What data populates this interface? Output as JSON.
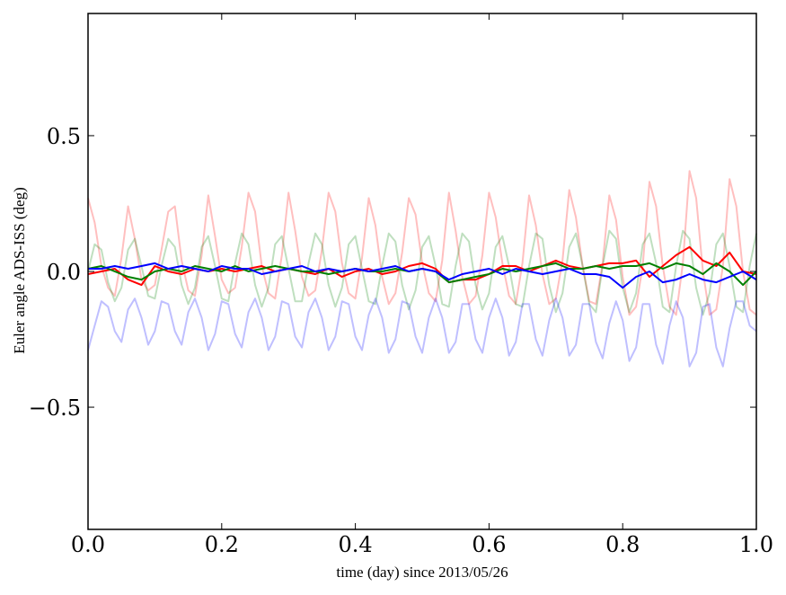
{
  "chart_data": {
    "type": "line",
    "title": "",
    "xlabel": "time (day) since 2013/05/26",
    "ylabel": "Euler angle ADS-ISS (deg)",
    "xlim": [
      0.0,
      1.0
    ],
    "ylim": [
      -0.95,
      0.95
    ],
    "x_ticks": [
      0.0,
      0.2,
      0.4,
      0.6,
      0.8,
      1.0
    ],
    "x_tick_labels": [
      "0.0",
      "0.2",
      "0.4",
      "0.6",
      "0.8",
      "1.0"
    ],
    "y_ticks": [
      -0.5,
      0.0,
      0.5
    ],
    "y_tick_labels": [
      "−0.5",
      "0.0",
      "0.5"
    ],
    "grid": false,
    "legend": "none",
    "series": [
      {
        "color": "#ff0000",
        "opacity": 0.25,
        "x": [
          0.0,
          0.01,
          0.02,
          0.03,
          0.04,
          0.05,
          0.06,
          0.07,
          0.08,
          0.09,
          0.1,
          0.11,
          0.12,
          0.13,
          0.14,
          0.15,
          0.16,
          0.17,
          0.18,
          0.19,
          0.2,
          0.21,
          0.22,
          0.23,
          0.24,
          0.25,
          0.26,
          0.27,
          0.28,
          0.29,
          0.3,
          0.31,
          0.32,
          0.33,
          0.34,
          0.35,
          0.36,
          0.37,
          0.38,
          0.39,
          0.4,
          0.41,
          0.42,
          0.43,
          0.44,
          0.45,
          0.46,
          0.47,
          0.48,
          0.49,
          0.5,
          0.51,
          0.52,
          0.53,
          0.54,
          0.55,
          0.56,
          0.57,
          0.58,
          0.59,
          0.6,
          0.61,
          0.62,
          0.63,
          0.64,
          0.65,
          0.66,
          0.67,
          0.68,
          0.69,
          0.7,
          0.71,
          0.72,
          0.73,
          0.74,
          0.75,
          0.76,
          0.77,
          0.78,
          0.79,
          0.8,
          0.81,
          0.82,
          0.83,
          0.84,
          0.85,
          0.86,
          0.87,
          0.88,
          0.89,
          0.9,
          0.91,
          0.92,
          0.93,
          0.94,
          0.95,
          0.96,
          0.97,
          0.98,
          0.99,
          1.0
        ],
        "y": [
          0.27,
          0.18,
          0.02,
          -0.06,
          -0.09,
          0.05,
          0.24,
          0.12,
          -0.03,
          -0.07,
          -0.05,
          0.08,
          0.22,
          0.24,
          0.04,
          -0.07,
          -0.09,
          0.06,
          0.28,
          0.13,
          -0.03,
          -0.08,
          -0.06,
          0.09,
          0.29,
          0.22,
          0.02,
          -0.08,
          -0.1,
          0.06,
          0.29,
          0.15,
          -0.02,
          -0.09,
          -0.07,
          0.08,
          0.29,
          0.22,
          0.03,
          -0.08,
          -0.1,
          0.05,
          0.27,
          0.17,
          -0.02,
          -0.12,
          -0.08,
          0.07,
          0.27,
          0.21,
          0.03,
          -0.08,
          -0.11,
          0.04,
          0.29,
          0.15,
          -0.02,
          -0.12,
          -0.09,
          0.06,
          0.29,
          0.2,
          0.03,
          -0.09,
          -0.12,
          0.03,
          0.28,
          0.17,
          -0.01,
          -0.12,
          -0.1,
          0.04,
          0.3,
          0.2,
          0.02,
          -0.11,
          -0.12,
          0.03,
          0.28,
          0.19,
          -0.02,
          -0.16,
          -0.13,
          0.02,
          0.33,
          0.24,
          0.02,
          -0.13,
          -0.16,
          0.03,
          0.37,
          0.27,
          0.0,
          -0.16,
          -0.14,
          0.02,
          0.34,
          0.24,
          0.0,
          -0.14,
          -0.16
        ]
      },
      {
        "color": "#008000",
        "opacity": 0.25,
        "x": [
          0.0,
          0.01,
          0.02,
          0.03,
          0.04,
          0.05,
          0.06,
          0.07,
          0.08,
          0.09,
          0.1,
          0.11,
          0.12,
          0.13,
          0.14,
          0.15,
          0.16,
          0.17,
          0.18,
          0.19,
          0.2,
          0.21,
          0.22,
          0.23,
          0.24,
          0.25,
          0.26,
          0.27,
          0.28,
          0.29,
          0.3,
          0.31,
          0.32,
          0.33,
          0.34,
          0.35,
          0.36,
          0.37,
          0.38,
          0.39,
          0.4,
          0.41,
          0.42,
          0.43,
          0.44,
          0.45,
          0.46,
          0.47,
          0.48,
          0.49,
          0.5,
          0.51,
          0.52,
          0.53,
          0.54,
          0.55,
          0.56,
          0.57,
          0.58,
          0.59,
          0.6,
          0.61,
          0.62,
          0.63,
          0.64,
          0.65,
          0.66,
          0.67,
          0.68,
          0.69,
          0.7,
          0.71,
          0.72,
          0.73,
          0.74,
          0.75,
          0.76,
          0.77,
          0.78,
          0.79,
          0.8,
          0.81,
          0.82,
          0.83,
          0.84,
          0.85,
          0.86,
          0.87,
          0.88,
          0.89,
          0.9,
          0.91,
          0.92,
          0.93,
          0.94,
          0.95,
          0.96,
          0.97,
          0.98,
          0.99,
          1.0
        ],
        "y": [
          0.0,
          0.1,
          0.08,
          -0.04,
          -0.11,
          -0.06,
          0.08,
          0.12,
          0.02,
          -0.09,
          -0.1,
          0.02,
          0.12,
          0.09,
          -0.05,
          -0.12,
          -0.06,
          0.09,
          0.13,
          0.02,
          -0.1,
          -0.11,
          0.03,
          0.14,
          0.1,
          -0.05,
          -0.13,
          -0.06,
          0.1,
          0.13,
          0.01,
          -0.11,
          -0.11,
          0.03,
          0.14,
          0.1,
          -0.05,
          -0.13,
          -0.06,
          0.1,
          0.13,
          0.01,
          -0.11,
          -0.12,
          0.02,
          0.14,
          0.11,
          -0.05,
          -0.14,
          -0.07,
          0.09,
          0.13,
          0.02,
          -0.12,
          -0.13,
          0.02,
          0.14,
          0.11,
          -0.05,
          -0.14,
          -0.08,
          0.09,
          0.13,
          0.02,
          -0.12,
          -0.13,
          0.02,
          0.14,
          0.12,
          -0.05,
          -0.15,
          -0.08,
          0.09,
          0.14,
          0.02,
          -0.12,
          -0.15,
          0.02,
          0.15,
          0.12,
          -0.06,
          -0.15,
          -0.08,
          0.1,
          0.14,
          0.03,
          -0.13,
          -0.15,
          0.02,
          0.15,
          0.12,
          -0.06,
          -0.16,
          -0.08,
          0.1,
          0.14,
          0.02,
          -0.13,
          -0.15,
          0.02,
          0.14
        ]
      },
      {
        "color": "#0000ff",
        "opacity": 0.25,
        "x": [
          0.0,
          0.01,
          0.02,
          0.03,
          0.04,
          0.05,
          0.06,
          0.07,
          0.08,
          0.09,
          0.1,
          0.11,
          0.12,
          0.13,
          0.14,
          0.15,
          0.16,
          0.17,
          0.18,
          0.19,
          0.2,
          0.21,
          0.22,
          0.23,
          0.24,
          0.25,
          0.26,
          0.27,
          0.28,
          0.29,
          0.3,
          0.31,
          0.32,
          0.33,
          0.34,
          0.35,
          0.36,
          0.37,
          0.38,
          0.39,
          0.4,
          0.41,
          0.42,
          0.43,
          0.44,
          0.45,
          0.46,
          0.47,
          0.48,
          0.49,
          0.5,
          0.51,
          0.52,
          0.53,
          0.54,
          0.55,
          0.56,
          0.57,
          0.58,
          0.59,
          0.6,
          0.61,
          0.62,
          0.63,
          0.64,
          0.65,
          0.66,
          0.67,
          0.68,
          0.69,
          0.7,
          0.71,
          0.72,
          0.73,
          0.74,
          0.75,
          0.76,
          0.77,
          0.78,
          0.79,
          0.8,
          0.81,
          0.82,
          0.83,
          0.84,
          0.85,
          0.86,
          0.87,
          0.88,
          0.89,
          0.9,
          0.91,
          0.92,
          0.93,
          0.94,
          0.95,
          0.96,
          0.97,
          0.98,
          0.99,
          1.0
        ],
        "y": [
          -0.29,
          -0.2,
          -0.11,
          -0.13,
          -0.22,
          -0.26,
          -0.14,
          -0.1,
          -0.17,
          -0.27,
          -0.22,
          -0.11,
          -0.12,
          -0.22,
          -0.27,
          -0.15,
          -0.1,
          -0.17,
          -0.29,
          -0.23,
          -0.11,
          -0.12,
          -0.23,
          -0.28,
          -0.15,
          -0.1,
          -0.17,
          -0.29,
          -0.24,
          -0.11,
          -0.12,
          -0.24,
          -0.28,
          -0.15,
          -0.1,
          -0.17,
          -0.29,
          -0.24,
          -0.11,
          -0.12,
          -0.24,
          -0.29,
          -0.16,
          -0.1,
          -0.17,
          -0.3,
          -0.25,
          -0.11,
          -0.12,
          -0.24,
          -0.3,
          -0.17,
          -0.1,
          -0.17,
          -0.3,
          -0.26,
          -0.12,
          -0.12,
          -0.25,
          -0.3,
          -0.17,
          -0.1,
          -0.17,
          -0.31,
          -0.26,
          -0.12,
          -0.12,
          -0.25,
          -0.31,
          -0.18,
          -0.1,
          -0.17,
          -0.31,
          -0.27,
          -0.12,
          -0.12,
          -0.26,
          -0.32,
          -0.19,
          -0.11,
          -0.18,
          -0.33,
          -0.28,
          -0.12,
          -0.12,
          -0.27,
          -0.34,
          -0.2,
          -0.11,
          -0.17,
          -0.35,
          -0.3,
          -0.13,
          -0.12,
          -0.28,
          -0.35,
          -0.21,
          -0.11,
          -0.11,
          -0.2,
          -0.22
        ]
      },
      {
        "color": "#ff0000",
        "opacity": 1,
        "x": [
          0.0,
          0.02,
          0.04,
          0.06,
          0.08,
          0.1,
          0.12,
          0.14,
          0.16,
          0.18,
          0.2,
          0.22,
          0.24,
          0.26,
          0.28,
          0.3,
          0.32,
          0.34,
          0.36,
          0.38,
          0.4,
          0.42,
          0.44,
          0.46,
          0.48,
          0.5,
          0.52,
          0.54,
          0.56,
          0.58,
          0.6,
          0.62,
          0.64,
          0.66,
          0.68,
          0.7,
          0.72,
          0.74,
          0.76,
          0.78,
          0.8,
          0.82,
          0.84,
          0.86,
          0.88,
          0.9,
          0.92,
          0.94,
          0.96,
          0.98,
          1.0
        ],
        "y": [
          -0.01,
          0.0,
          0.01,
          -0.03,
          -0.05,
          0.02,
          0.0,
          -0.01,
          0.01,
          0.0,
          0.01,
          0.0,
          0.01,
          0.02,
          0.0,
          0.01,
          0.0,
          -0.01,
          0.01,
          -0.02,
          0.0,
          0.01,
          -0.01,
          0.0,
          0.02,
          0.03,
          0.01,
          -0.04,
          -0.03,
          -0.03,
          -0.01,
          0.02,
          0.02,
          0.0,
          0.02,
          0.04,
          0.02,
          0.01,
          0.02,
          0.03,
          0.03,
          0.04,
          -0.02,
          0.02,
          0.06,
          0.09,
          0.04,
          0.02,
          0.07,
          0.0,
          -0.01
        ]
      },
      {
        "color": "#008000",
        "opacity": 1,
        "x": [
          0.0,
          0.02,
          0.04,
          0.06,
          0.08,
          0.1,
          0.12,
          0.14,
          0.16,
          0.18,
          0.2,
          0.22,
          0.24,
          0.26,
          0.28,
          0.3,
          0.32,
          0.34,
          0.36,
          0.38,
          0.4,
          0.42,
          0.44,
          0.46,
          0.48,
          0.5,
          0.52,
          0.54,
          0.56,
          0.58,
          0.6,
          0.62,
          0.64,
          0.66,
          0.68,
          0.7,
          0.72,
          0.74,
          0.76,
          0.78,
          0.8,
          0.82,
          0.84,
          0.86,
          0.88,
          0.9,
          0.92,
          0.94,
          0.96,
          0.98,
          1.0
        ],
        "y": [
          0.01,
          0.02,
          0.0,
          -0.02,
          -0.03,
          0.0,
          0.01,
          0.0,
          0.02,
          0.01,
          0.0,
          0.02,
          0.0,
          0.01,
          0.02,
          0.01,
          0.0,
          0.0,
          -0.01,
          0.0,
          0.01,
          0.0,
          0.0,
          0.01,
          0.0,
          0.01,
          0.0,
          -0.04,
          -0.03,
          -0.02,
          -0.01,
          0.01,
          0.0,
          0.01,
          0.02,
          0.03,
          0.01,
          0.01,
          0.02,
          0.01,
          0.02,
          0.02,
          0.03,
          0.01,
          0.03,
          0.02,
          -0.01,
          0.03,
          0.0,
          -0.05,
          0.0
        ]
      },
      {
        "color": "#0000ff",
        "opacity": 1,
        "x": [
          0.0,
          0.02,
          0.04,
          0.06,
          0.08,
          0.1,
          0.12,
          0.14,
          0.16,
          0.18,
          0.2,
          0.22,
          0.24,
          0.26,
          0.28,
          0.3,
          0.32,
          0.34,
          0.36,
          0.38,
          0.4,
          0.42,
          0.44,
          0.46,
          0.48,
          0.5,
          0.52,
          0.54,
          0.56,
          0.58,
          0.6,
          0.62,
          0.64,
          0.66,
          0.68,
          0.7,
          0.72,
          0.74,
          0.76,
          0.78,
          0.8,
          0.82,
          0.84,
          0.86,
          0.88,
          0.9,
          0.92,
          0.94,
          0.96,
          0.98,
          1.0
        ],
        "y": [
          0.01,
          0.01,
          0.02,
          0.01,
          0.02,
          0.03,
          0.01,
          0.02,
          0.01,
          0.0,
          0.02,
          0.01,
          0.01,
          -0.01,
          0.0,
          0.01,
          0.02,
          0.0,
          0.01,
          0.0,
          0.01,
          0.0,
          0.01,
          0.02,
          0.0,
          0.01,
          0.0,
          -0.03,
          -0.01,
          0.0,
          0.01,
          -0.01,
          0.01,
          0.0,
          -0.01,
          0.0,
          0.01,
          -0.01,
          -0.01,
          -0.02,
          -0.06,
          -0.02,
          0.0,
          -0.04,
          -0.03,
          -0.01,
          -0.03,
          -0.04,
          -0.02,
          0.0,
          -0.03
        ]
      }
    ]
  }
}
